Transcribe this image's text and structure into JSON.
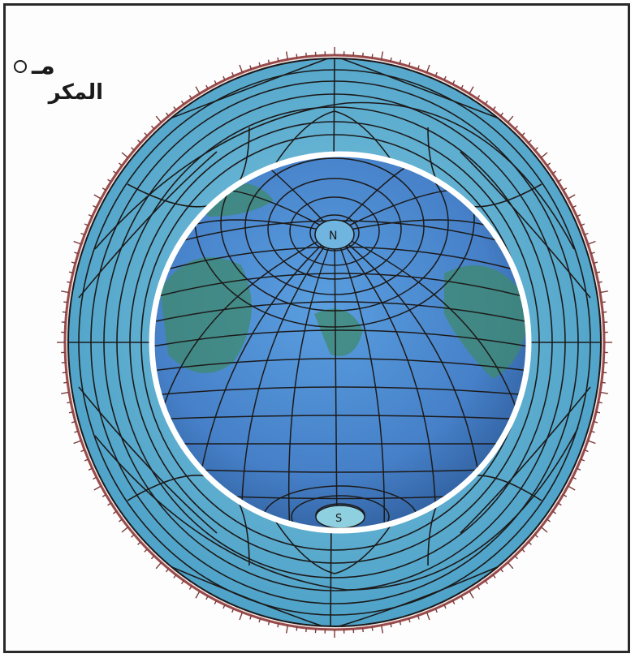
{
  "caption": {
    "line1": "مـ",
    "line2": "المكر",
    "bullet_icon": "circle-outline-icon"
  },
  "map": {
    "projection": "stereographic-globe-with-outer-ring",
    "inner_north_label": "N",
    "inner_south_label": "S",
    "colors": {
      "outer_ring": "#5aaed0",
      "inner_globe": "#4b8fd4",
      "land": "#3f8a6e",
      "grid": "#1c1a1a",
      "white_circle": "#ffffff",
      "tick": "#7a3a3a"
    }
  }
}
